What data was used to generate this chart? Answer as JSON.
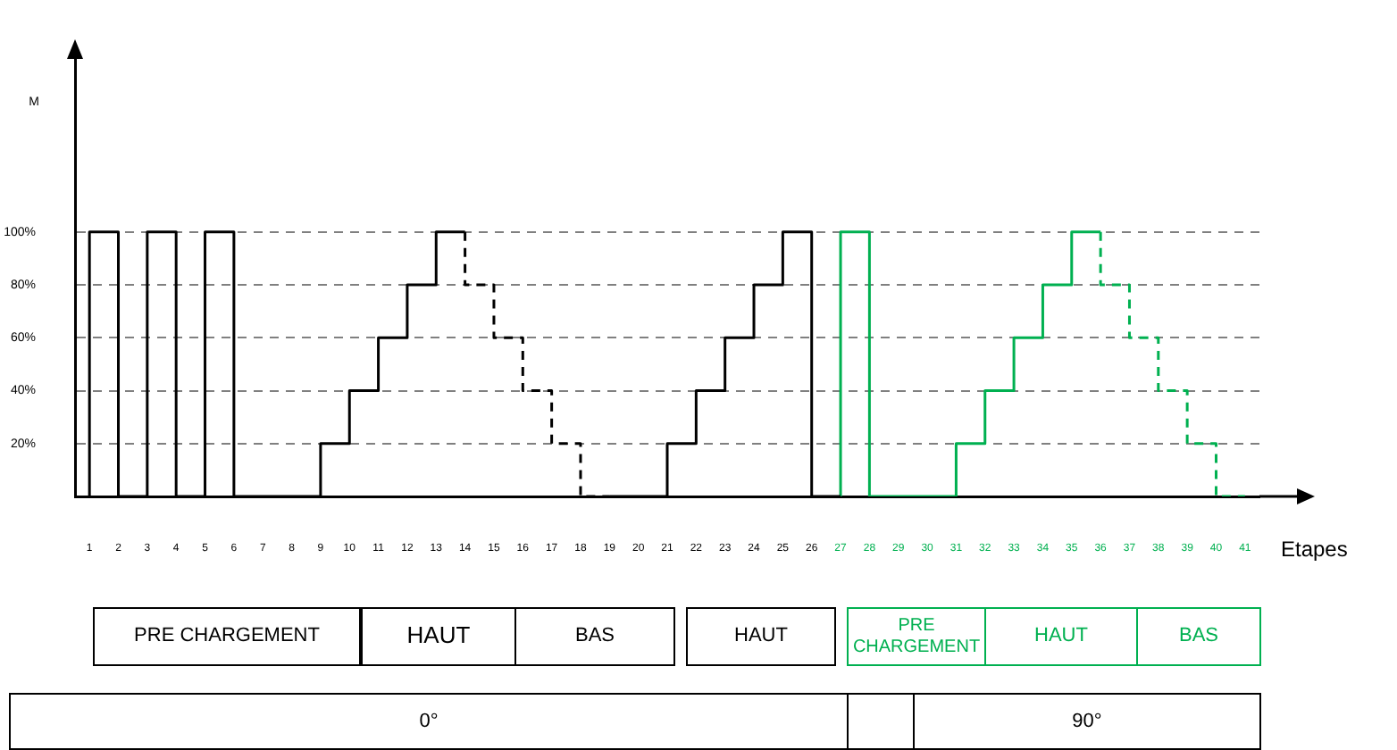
{
  "chart_data": {
    "type": "step",
    "xlabel": "Etapes",
    "ylabel": "M",
    "x": [
      1,
      2,
      3,
      4,
      5,
      6,
      7,
      8,
      9,
      10,
      11,
      12,
      13,
      14,
      15,
      16,
      17,
      18,
      19,
      20,
      21,
      22,
      23,
      24,
      25,
      26,
      27,
      28,
      29,
      30,
      31,
      32,
      33,
      34,
      35,
      36,
      37,
      38,
      39,
      40,
      41
    ],
    "series": [
      {
        "color": "#000000",
        "line_style": "solid",
        "values": [
          0,
          100,
          0,
          100,
          0,
          100,
          0,
          0,
          0,
          20,
          40,
          60,
          80,
          100,
          null,
          null,
          null,
          null,
          0,
          0,
          0,
          20,
          40,
          60,
          80,
          100,
          0,
          null,
          null,
          null,
          null,
          null,
          null,
          null,
          null,
          null,
          null,
          null,
          null,
          null,
          null
        ]
      },
      {
        "color": "#000000",
        "line_style": "dashed",
        "values": [
          null,
          null,
          null,
          null,
          null,
          null,
          null,
          null,
          null,
          null,
          null,
          null,
          null,
          100,
          80,
          60,
          40,
          20,
          0,
          null,
          null,
          null,
          null,
          null,
          null,
          null,
          null,
          null,
          null,
          null,
          null,
          null,
          null,
          null,
          null,
          null,
          null,
          null,
          null,
          null,
          null
        ]
      },
      {
        "color": "#00b050",
        "line_style": "solid",
        "values": [
          null,
          null,
          null,
          null,
          null,
          null,
          null,
          null,
          null,
          null,
          null,
          null,
          null,
          null,
          null,
          null,
          null,
          null,
          null,
          null,
          null,
          null,
          null,
          null,
          null,
          null,
          0,
          100,
          0,
          0,
          0,
          20,
          40,
          60,
          80,
          100,
          null,
          null,
          null,
          null,
          null
        ]
      },
      {
        "color": "#00b050",
        "line_style": "dashed",
        "values": [
          null,
          null,
          null,
          null,
          null,
          null,
          null,
          null,
          null,
          null,
          null,
          null,
          null,
          null,
          null,
          null,
          null,
          null,
          null,
          null,
          null,
          null,
          null,
          null,
          null,
          null,
          null,
          null,
          null,
          null,
          null,
          null,
          null,
          null,
          null,
          100,
          80,
          60,
          40,
          20,
          0
        ]
      }
    ],
    "xlim": [
      0.5,
      41.5
    ],
    "xticks": [
      1,
      2,
      3,
      4,
      5,
      6,
      7,
      8,
      9,
      10,
      11,
      12,
      13,
      14,
      15,
      16,
      17,
      18,
      19,
      20,
      21,
      22,
      23,
      24,
      25,
      26,
      27,
      28,
      29,
      30,
      31,
      32,
      33,
      34,
      35,
      36,
      37,
      38,
      39,
      40,
      41
    ],
    "ylim": [
      0,
      170
    ],
    "yticks": [
      {
        "value": 20,
        "label": "20%"
      },
      {
        "value": 40,
        "label": "40%"
      },
      {
        "value": 60,
        "label": "60%"
      },
      {
        "value": 80,
        "label": "80%"
      },
      {
        "value": 100,
        "label": "100%"
      }
    ],
    "grid": "y",
    "marker": "none",
    "annotations": [
      "PRE CHARGEMENT",
      "HAUT",
      "BAS",
      "HAUT",
      "PRE CHARGEMENT",
      "HAUT",
      "BAS",
      "0°",
      "90°"
    ]
  }
}
